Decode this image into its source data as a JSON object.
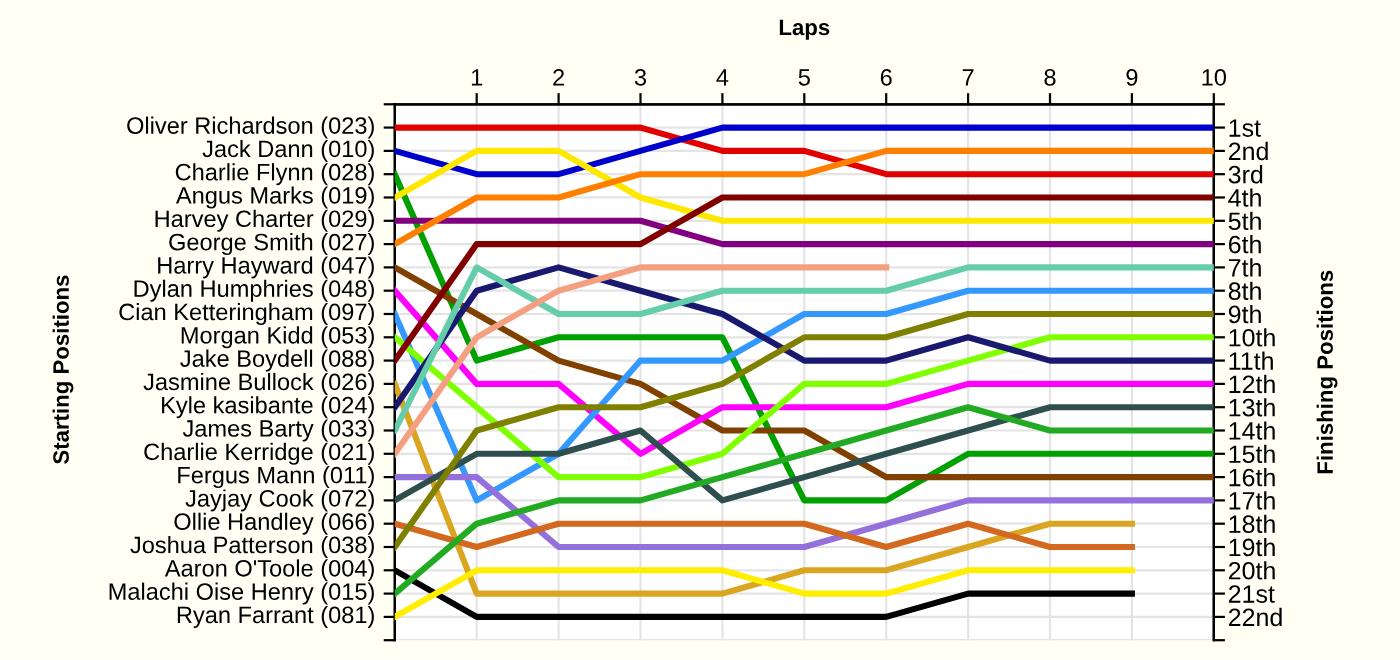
{
  "chart_data": {
    "type": "line",
    "xlabel": "Laps",
    "y2label": "Finishing Positions",
    "x": [
      0,
      1,
      2,
      3,
      4,
      5,
      6,
      7,
      8,
      9,
      10
    ],
    "xlim": [
      0,
      10
    ],
    "xticks": [
      1,
      2,
      3,
      4,
      5,
      6,
      7,
      8,
      9,
      10
    ],
    "legend": false,
    "y2lim": [
      23,
      0
    ],
    "y2ticks": [
      {
        "value": 0,
        "label": null
      },
      {
        "value": 1,
        "label": "1st"
      },
      {
        "value": 2,
        "label": "2nd"
      },
      {
        "value": 3,
        "label": "3rd"
      },
      {
        "value": 4,
        "label": "4th"
      },
      {
        "value": 5,
        "label": "5th"
      },
      {
        "value": 6,
        "label": "6th"
      },
      {
        "value": 7,
        "label": "7th"
      },
      {
        "value": 8,
        "label": "8th"
      },
      {
        "value": 9,
        "label": "9th"
      },
      {
        "value": 10,
        "label": "10th"
      },
      {
        "value": 11,
        "label": "11th"
      },
      {
        "value": 12,
        "label": "12th"
      },
      {
        "value": 13,
        "label": "13th"
      },
      {
        "value": 14,
        "label": "14th"
      },
      {
        "value": 15,
        "label": "15th"
      },
      {
        "value": 16,
        "label": "16th"
      },
      {
        "value": 17,
        "label": "17th"
      },
      {
        "value": 18,
        "label": "18th"
      },
      {
        "value": 19,
        "label": "19th"
      },
      {
        "value": 20,
        "label": "20th"
      },
      {
        "value": 21,
        "label": "21st"
      },
      {
        "value": 22,
        "label": "22nd"
      },
      {
        "value": 23,
        "label": null
      }
    ],
    "grid": true,
    "line_style": "solid",
    "marker": "none",
    "annotations": [
      "Starting Positions",
      "Oliver Richardson (023)",
      "Jack Dann (010)",
      "Charlie Flynn (028)",
      "Angus Marks (019)",
      "Harvey Charter (029)",
      "George Smith (027)",
      "Harry Hayward (047)",
      "Dylan Humphries (048)",
      "Cian Ketteringham (097)",
      "Morgan Kidd (053)",
      "Jake Boydell (088)",
      "Jasmine Bullock (026)",
      "Kyle kasibante (024)",
      "James Barty (033)",
      "Charlie Kerridge (021)",
      "Fergus Mann (011)",
      "Jayjay Cook (072)",
      "Ollie Handley (066)",
      "Joshua Patterson (038)",
      "Aaron O'Toole (004)",
      "Malachi Oise Henry (015)",
      "Ryan Farrant (081)"
    ],
    "series": [
      {
        "axis": "y2",
        "color": "#e00000",
        "values": [
          1,
          1,
          1,
          1,
          2,
          2,
          3,
          3,
          3,
          3,
          3
        ]
      },
      {
        "axis": "y2",
        "color": "#0000cc",
        "values": [
          2,
          3,
          3,
          2,
          1,
          1,
          1,
          1,
          1,
          1,
          1
        ]
      },
      {
        "axis": "y2",
        "color": "#00a000",
        "values": [
          3,
          11,
          10,
          10,
          10,
          17,
          17,
          15,
          15,
          15,
          15
        ]
      },
      {
        "axis": "y2",
        "color": "#ffe800",
        "values": [
          4,
          2,
          2,
          4,
          5,
          5,
          5,
          5,
          5,
          5,
          5
        ]
      },
      {
        "axis": "y2",
        "color": "#800080",
        "values": [
          5,
          5,
          5,
          5,
          6,
          6,
          6,
          6,
          6,
          6,
          6
        ]
      },
      {
        "axis": "y2",
        "color": "#ff8000",
        "values": [
          6,
          4,
          4,
          3,
          3,
          3,
          2,
          2,
          2,
          2,
          2
        ]
      },
      {
        "axis": "y2",
        "color": "#804000",
        "values": [
          7,
          9,
          11,
          12,
          14,
          14,
          16,
          16,
          16,
          16,
          16
        ]
      },
      {
        "axis": "y2",
        "color": "#ff00ff",
        "values": [
          8,
          12,
          12,
          15,
          13,
          13,
          13,
          12,
          12,
          12,
          12
        ]
      },
      {
        "axis": "y2",
        "color": "#3399ff",
        "values": [
          9,
          17,
          15,
          11,
          11,
          9,
          9,
          8,
          8,
          8,
          8
        ]
      },
      {
        "axis": "y2",
        "color": "#80ff00",
        "values": [
          10,
          13,
          16,
          16,
          15,
          12,
          12,
          11,
          10,
          10,
          10
        ]
      },
      {
        "axis": "y2",
        "color": "#800000",
        "values": [
          11,
          6,
          6,
          6,
          4,
          4,
          4,
          4,
          4,
          4,
          4
        ]
      },
      {
        "axis": "y2",
        "color": "#daa520",
        "values": [
          12,
          21,
          21,
          21,
          21,
          20,
          20,
          19,
          18,
          18,
          null
        ]
      },
      {
        "axis": "y2",
        "color": "#191970",
        "values": [
          13,
          8,
          7,
          8,
          9,
          11,
          11,
          10,
          11,
          11,
          11
        ]
      },
      {
        "axis": "y2",
        "color": "#66cdaa",
        "values": [
          14,
          7,
          9,
          9,
          8,
          8,
          8,
          7,
          7,
          7,
          7
        ]
      },
      {
        "axis": "y2",
        "color": "#f4a080",
        "values": [
          15,
          10,
          8,
          7,
          7,
          7,
          7,
          null,
          null,
          null,
          null
        ]
      },
      {
        "axis": "y2",
        "color": "#9370db",
        "values": [
          16,
          16,
          19,
          19,
          19,
          19,
          18,
          17,
          17,
          17,
          17
        ]
      },
      {
        "axis": "y2",
        "color": "#2f4f4f",
        "values": [
          17,
          15,
          15,
          14,
          17,
          16,
          15,
          14,
          13,
          13,
          13
        ]
      },
      {
        "axis": "y2",
        "color": "#d2691e",
        "values": [
          18,
          19,
          18,
          18,
          18,
          18,
          19,
          18,
          19,
          19,
          null
        ]
      },
      {
        "axis": "y2",
        "color": "#808000",
        "values": [
          19,
          14,
          13,
          13,
          12,
          10,
          10,
          9,
          9,
          9,
          9
        ]
      },
      {
        "axis": "y2",
        "color": "#000000",
        "values": [
          20,
          22,
          22,
          22,
          22,
          22,
          22,
          21,
          21,
          21,
          null
        ]
      },
      {
        "axis": "y2",
        "color": "#22aa22",
        "values": [
          21,
          18,
          17,
          17,
          16,
          15,
          14,
          13,
          14,
          14,
          14
        ]
      },
      {
        "axis": "y2",
        "color": "#ffee00",
        "values": [
          22,
          20,
          20,
          20,
          20,
          21,
          21,
          20,
          20,
          20,
          null
        ]
      }
    ]
  }
}
